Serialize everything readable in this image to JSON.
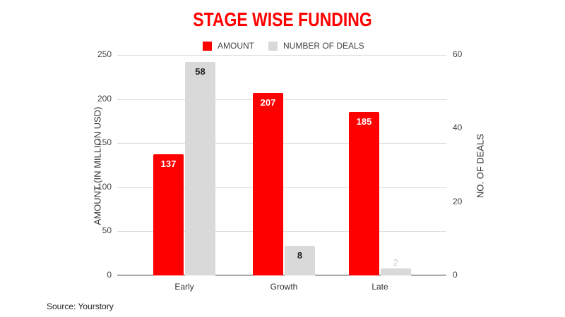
{
  "chart_data": {
    "type": "bar",
    "title": "STAGE WISE FUNDING",
    "categories": [
      "Early",
      "Growth",
      "Late"
    ],
    "series": [
      {
        "name": "AMOUNT",
        "axis": "left",
        "color": "#ff0000",
        "values": [
          137,
          207,
          185
        ],
        "label_color": "#ffffff"
      },
      {
        "name": "NUMBER OF DEALS",
        "axis": "right",
        "color": "#d9d9d9",
        "values": [
          58,
          8,
          2
        ],
        "label_color": "#222222"
      }
    ],
    "ylabel": "AMOUNT (IN MILLION USD)",
    "ylabel_right": "NO. OF DEALS",
    "ylim": [
      0,
      250
    ],
    "ylim_right": [
      0,
      60
    ],
    "yticks": [
      "0",
      "50",
      "100",
      "150",
      "200",
      "250"
    ],
    "yticks_right": [
      "0",
      "20",
      "40",
      "60"
    ],
    "grid": true,
    "legend_position": "top"
  },
  "source": "Source: Yourstory"
}
